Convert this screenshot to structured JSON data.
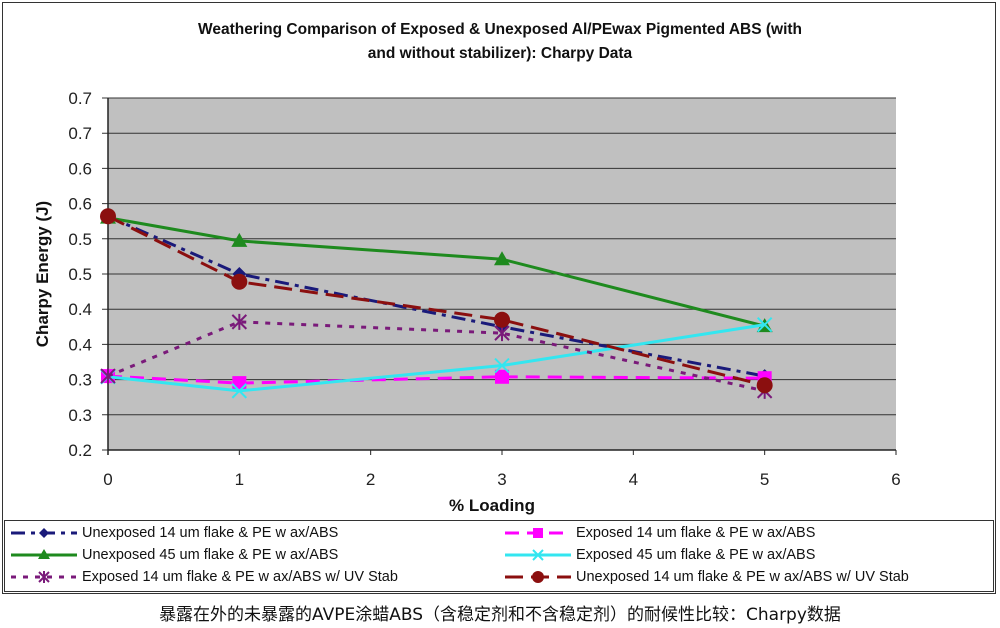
{
  "chart_data": {
    "type": "line",
    "title": "Weathering Comparison of Exposed & Unexposed Al/PEwax Pigmented ABS (with and without stabilizer):  Charpy Data",
    "title_lines": [
      "Weathering Comparison of Exposed & Unexposed Al/PEwax Pigmented ABS (with",
      "and without stabilizer):  Charpy Data"
    ],
    "xlabel": "% Loading",
    "ylabel": "Charpy Energy (J)",
    "xlim": [
      0,
      6
    ],
    "ylim": [
      0.2,
      0.7
    ],
    "x_ticks": [
      0,
      1,
      2,
      3,
      4,
      5,
      6
    ],
    "x_tick_labels": [
      "0",
      "1",
      "2",
      "3",
      "4",
      "5",
      "6"
    ],
    "y_ticks": [
      0.2,
      0.25,
      0.3,
      0.35,
      0.4,
      0.45,
      0.5,
      0.55,
      0.6,
      0.65,
      0.7
    ],
    "y_tick_labels": [
      "0.2",
      "0.3",
      "0.3",
      "0.4",
      "0.4",
      "0.5",
      "0.5",
      "0.6",
      "0.6",
      "0.7",
      "0.7"
    ],
    "grid": "horizontal",
    "plot_background": "#c0c0c0",
    "legend_placement": "bottom",
    "x": [
      0,
      1,
      3,
      5
    ],
    "series": [
      {
        "name": "Unexposed 14 um flake & PE w ax/ABS",
        "values": [
          0.532,
          0.45,
          0.375,
          0.305
        ],
        "color": "#1a1a7a",
        "dash": "dashdot",
        "marker": "diamond"
      },
      {
        "name": "Exposed 14 um flake & PE w ax/ABS",
        "values": [
          0.305,
          0.295,
          0.304,
          0.302
        ],
        "color": "#ff00ff",
        "dash": "dash",
        "marker": "square"
      },
      {
        "name": "Unexposed 45 um flake & PE w ax/ABS",
        "values": [
          0.53,
          0.497,
          0.471,
          0.376
        ],
        "color": "#1e8a1e",
        "dash": "solid",
        "marker": "triangle"
      },
      {
        "name": "Exposed 45 um flake & PE w ax/ABS",
        "values": [
          0.304,
          0.284,
          0.32,
          0.378
        ],
        "color": "#33e6f0",
        "dash": "solid",
        "marker": "x"
      },
      {
        "name": "Exposed 14 um flake & PE w ax/ABS w/ UV Stab",
        "values": [
          0.305,
          0.382,
          0.366,
          0.284
        ],
        "color": "#7a1a7a",
        "dash": "dot",
        "marker": "star"
      },
      {
        "name": "Unexposed 14 um flake & PE w ax/ABS w/ UV Stab",
        "values": [
          0.532,
          0.439,
          0.385,
          0.292
        ],
        "color": "#8b0f0f",
        "dash": "longdash",
        "marker": "circle"
      }
    ]
  },
  "caption": "暴露在外的未暴露的AVPE涂蜡ABS（含稳定剂和不含稳定剂）的耐候性比较：Charpy数据"
}
